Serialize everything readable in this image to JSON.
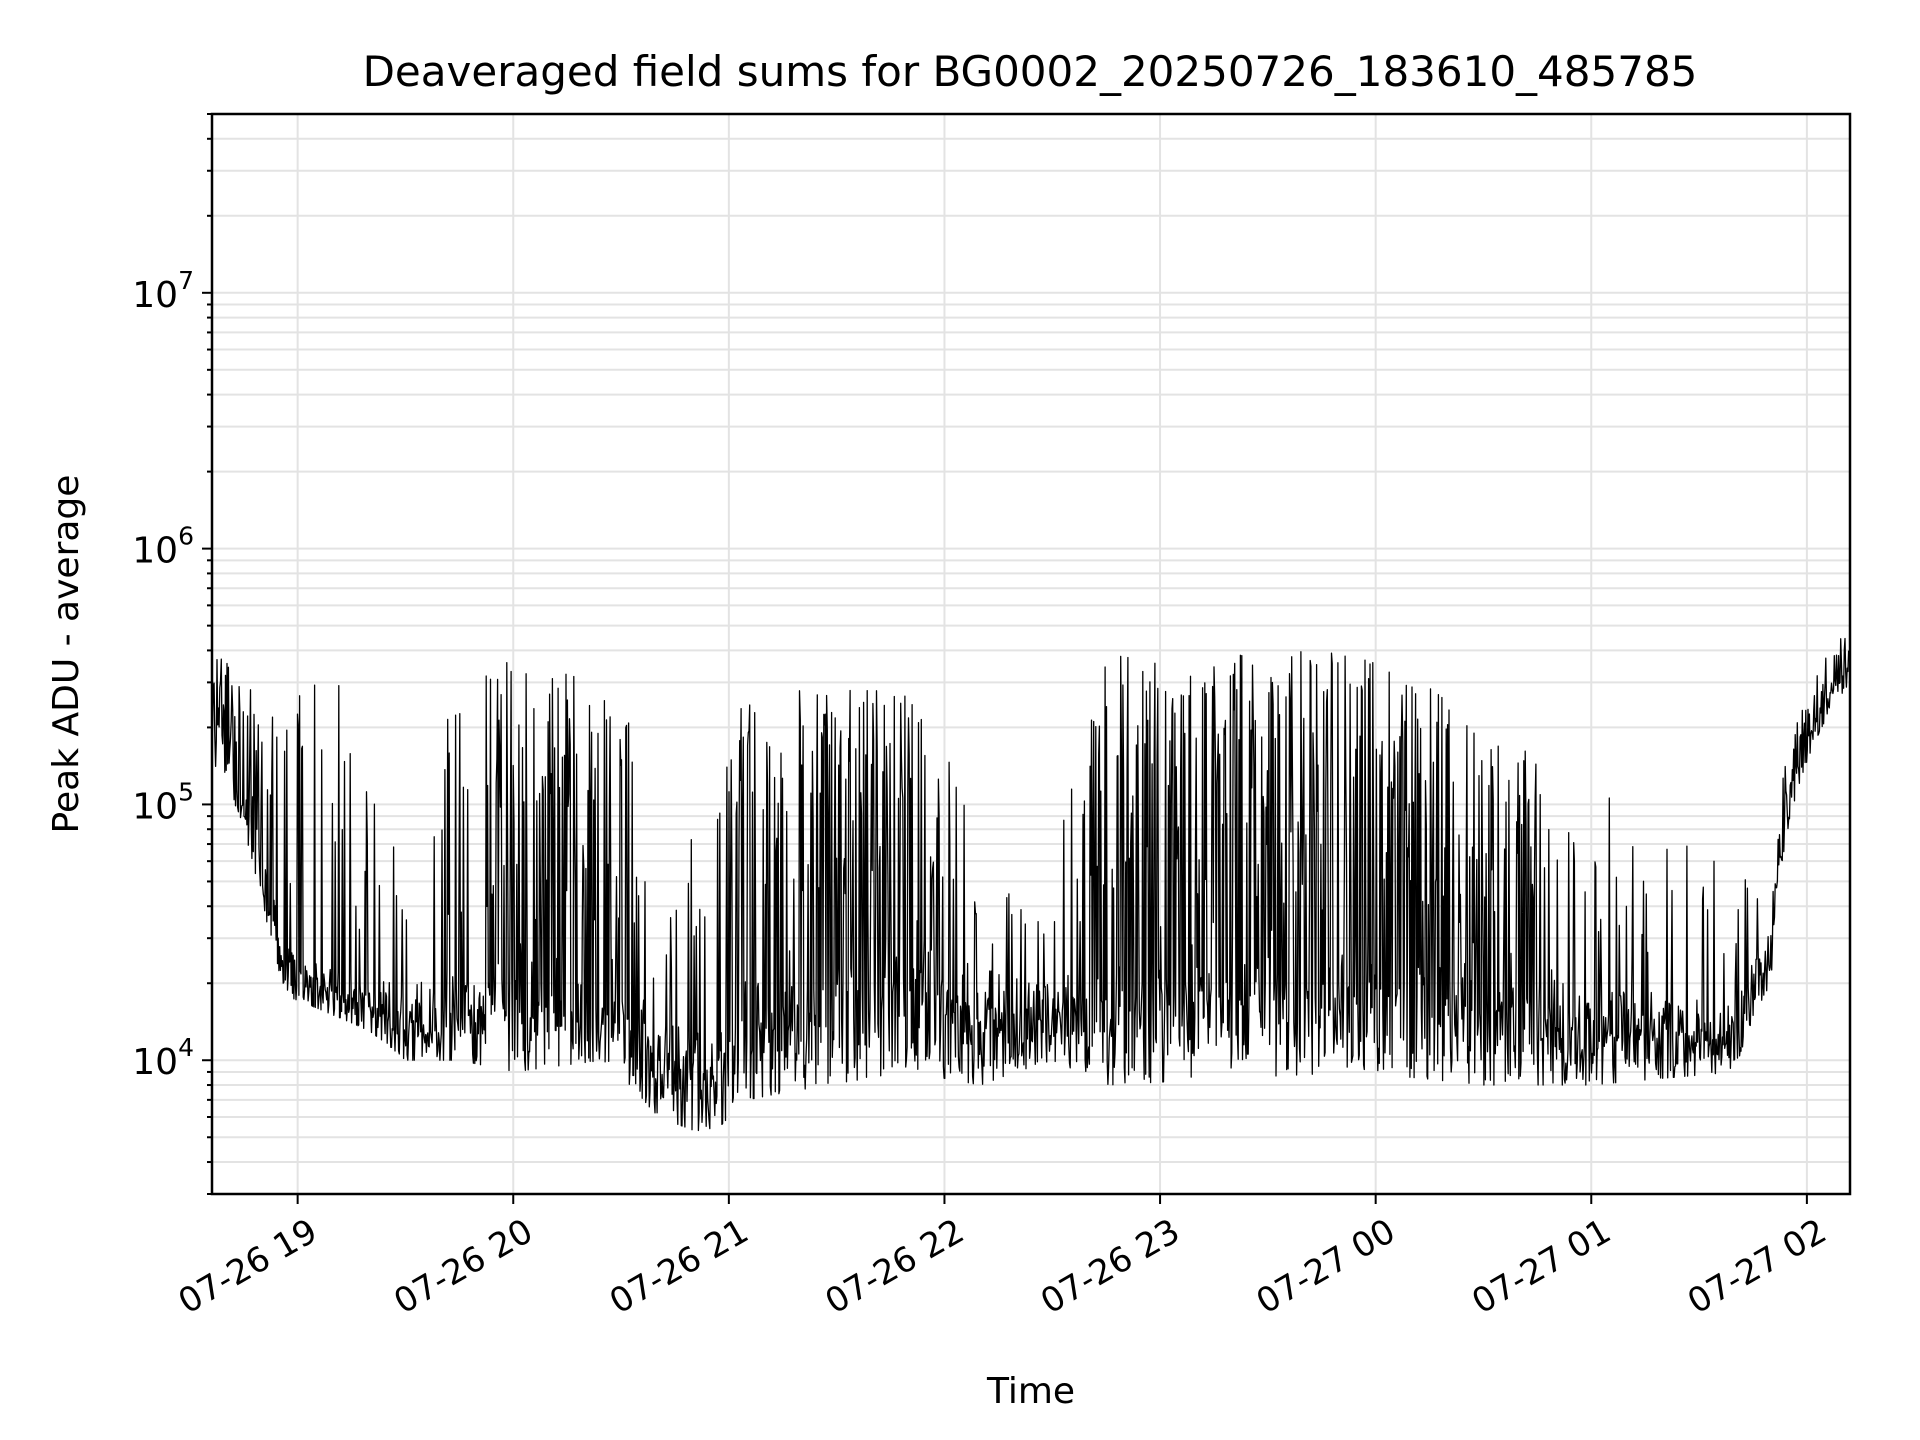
{
  "chart_data": {
    "type": "line",
    "title": "Deaveraged field sums for BG0002_20250726_183610_485785",
    "xlabel": "Time",
    "ylabel": "Peak ADU - average",
    "x_range": [
      "2025-07-26 18:36:10",
      "2025-07-27 02:12:00"
    ],
    "y_scale": "log",
    "ylim": [
      3000,
      50000000
    ],
    "grid": true,
    "legend": "none",
    "line_color": "#000000",
    "x_ticks": [
      {
        "value": "2025-07-26 19:00",
        "label": "07-26 19"
      },
      {
        "value": "2025-07-26 20:00",
        "label": "07-26 20"
      },
      {
        "value": "2025-07-26 21:00",
        "label": "07-26 21"
      },
      {
        "value": "2025-07-26 22:00",
        "label": "07-26 22"
      },
      {
        "value": "2025-07-26 23:00",
        "label": "07-26 23"
      },
      {
        "value": "2025-07-27 00:00",
        "label": "07-27 00"
      },
      {
        "value": "2025-07-27 01:00",
        "label": "07-27 01"
      },
      {
        "value": "2025-07-27 02:00",
        "label": "07-27 02"
      }
    ],
    "y_ticks": [
      {
        "value": 10000,
        "base": "10",
        "exp": "4"
      },
      {
        "value": 100000,
        "base": "10",
        "exp": "5"
      },
      {
        "value": 1000000,
        "base": "10",
        "exp": "6"
      },
      {
        "value": 10000000,
        "base": "10",
        "exp": "7"
      }
    ],
    "series": [
      {
        "name": "",
        "envelope": [
          {
            "time": "2025-07-26 18:36",
            "low": 150000,
            "high": 450000,
            "base": 220000,
            "dense": true
          },
          {
            "time": "2025-07-26 18:50",
            "low": 40000,
            "high": 250000,
            "base": 60000,
            "dense": true
          },
          {
            "time": "2025-07-26 18:56",
            "low": 18000,
            "high": 250000,
            "base": 25000,
            "dense": false
          },
          {
            "time": "2025-07-26 19:10",
            "low": 15000,
            "high": 330000,
            "base": 20000,
            "dense": false
          },
          {
            "time": "2025-07-26 19:20",
            "low": 13000,
            "high": 120000,
            "base": 18000,
            "dense": false
          },
          {
            "time": "2025-07-26 19:30",
            "low": 10000,
            "high": 50000,
            "base": 18000,
            "dense": false
          },
          {
            "time": "2025-07-26 19:45",
            "low": 10000,
            "high": 300000,
            "base": 20000,
            "dense": false
          },
          {
            "time": "2025-07-26 20:00",
            "low": 9000,
            "high": 380000,
            "base": 22000,
            "dense": true
          },
          {
            "time": "2025-07-26 20:25",
            "low": 10000,
            "high": 300000,
            "base": 18000,
            "dense": true
          },
          {
            "time": "2025-07-26 20:40",
            "low": 6000,
            "high": 150000,
            "base": 14000,
            "dense": false
          },
          {
            "time": "2025-07-26 20:55",
            "low": 5000,
            "high": 50000,
            "base": 12000,
            "dense": false
          },
          {
            "time": "2025-07-26 21:05",
            "low": 7000,
            "high": 280000,
            "base": 18000,
            "dense": true
          },
          {
            "time": "2025-07-26 21:50",
            "low": 9000,
            "high": 280000,
            "base": 25000,
            "dense": true
          },
          {
            "time": "2025-07-26 22:10",
            "low": 8000,
            "high": 60000,
            "base": 20000,
            "dense": false
          },
          {
            "time": "2025-07-26 22:30",
            "low": 10000,
            "high": 30000,
            "base": 18000,
            "dense": false
          },
          {
            "time": "2025-07-26 22:45",
            "low": 8000,
            "high": 380000,
            "base": 20000,
            "dense": true
          },
          {
            "time": "2025-07-26 23:55",
            "low": 9000,
            "high": 400000,
            "base": 25000,
            "dense": true
          },
          {
            "time": "2025-07-27 00:30",
            "low": 8000,
            "high": 200000,
            "base": 20000,
            "dense": true
          },
          {
            "time": "2025-07-27 01:00",
            "low": 8000,
            "high": 120000,
            "base": 18000,
            "dense": false
          },
          {
            "time": "2025-07-27 01:40",
            "low": 9000,
            "high": 50000,
            "base": 15000,
            "dense": false
          },
          {
            "time": "2025-07-27 01:50",
            "low": 20000,
            "high": 60000,
            "base": 30000,
            "dense": false
          },
          {
            "time": "2025-07-27 02:12",
            "low": 300000,
            "high": 520000,
            "base": 420000,
            "dense": false
          }
        ]
      }
    ]
  }
}
